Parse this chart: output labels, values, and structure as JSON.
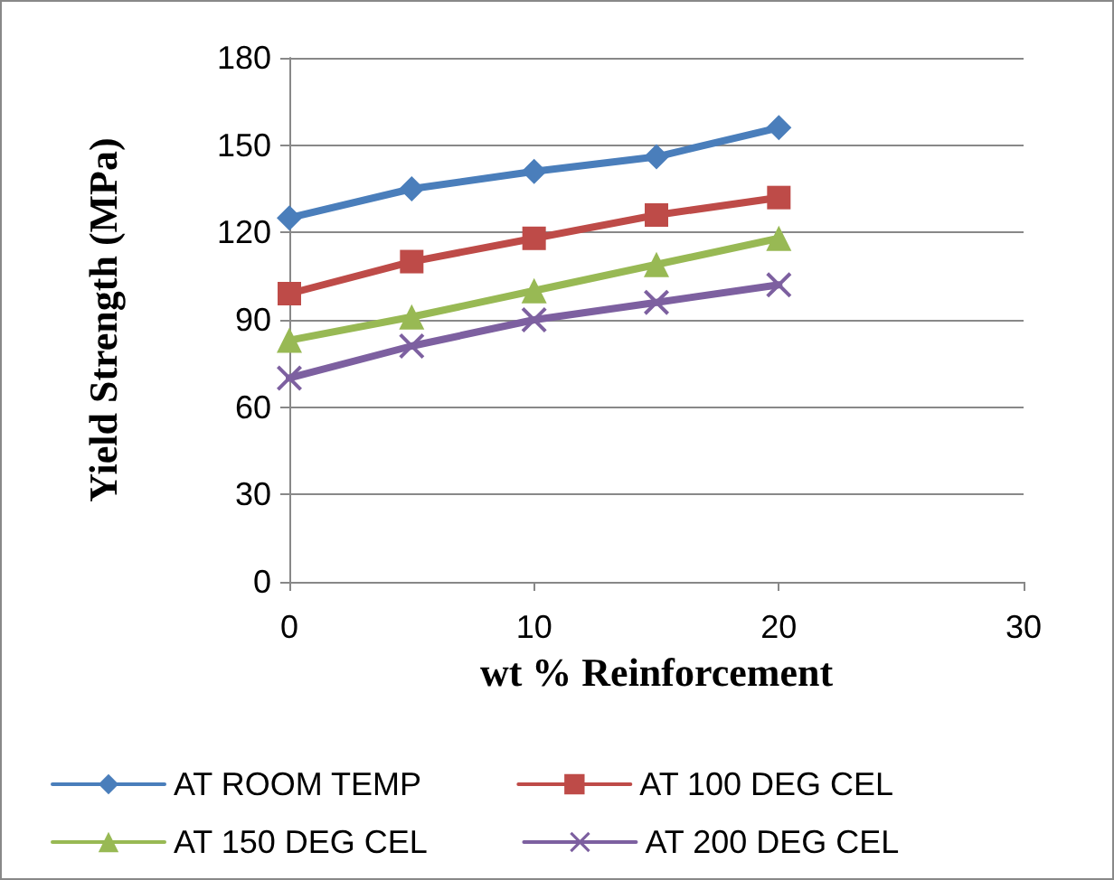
{
  "chart_data": {
    "type": "line",
    "xlabel": "wt % Reinforcement",
    "ylabel": "Yield Strength (MPa)",
    "x": [
      0,
      5,
      10,
      15,
      20
    ],
    "xlim": [
      0,
      30
    ],
    "xticks": [
      0,
      10,
      20,
      30
    ],
    "ylim": [
      0,
      180
    ],
    "yticks": [
      0,
      30,
      60,
      90,
      120,
      150,
      180
    ],
    "grid": "y",
    "legend": "bottom",
    "series": [
      {
        "name": "AT ROOM TEMP",
        "color": "#4a7ebb",
        "marker": "diamond",
        "values": [
          125,
          135,
          141,
          146,
          156
        ]
      },
      {
        "name": "AT 100 DEG CEL",
        "color": "#be4b48",
        "marker": "square",
        "values": [
          99,
          110,
          118,
          126,
          132
        ]
      },
      {
        "name": "AT 150 DEG CEL",
        "color": "#98b954",
        "marker": "triangle",
        "values": [
          83,
          91,
          100,
          109,
          118
        ]
      },
      {
        "name": "AT 200 DEG CEL",
        "color": "#7d60a0",
        "marker": "cross",
        "values": [
          70,
          81,
          90,
          96,
          102
        ]
      }
    ]
  }
}
